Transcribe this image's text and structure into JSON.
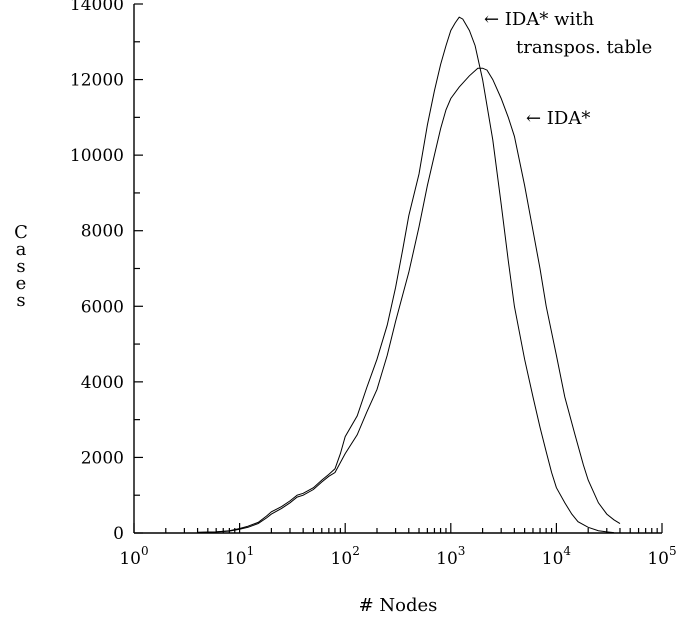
{
  "chart_data": {
    "type": "line",
    "title": "",
    "xlabel": "# Nodes",
    "ylabel": "Cases",
    "x_scale": "log10",
    "xlim": [
      1,
      100000
    ],
    "ylim": [
      0,
      14000
    ],
    "x_ticks": [
      1,
      10,
      100,
      1000,
      10000,
      100000
    ],
    "x_tick_labels": [
      {
        "base": "10",
        "exp": "0"
      },
      {
        "base": "10",
        "exp": "1"
      },
      {
        "base": "10",
        "exp": "2"
      },
      {
        "base": "10",
        "exp": "3"
      },
      {
        "base": "10",
        "exp": "4"
      },
      {
        "base": "10",
        "exp": "5"
      }
    ],
    "y_ticks": [
      0,
      2000,
      4000,
      6000,
      8000,
      10000,
      12000,
      14000
    ],
    "y_tick_labels": [
      "0",
      "2000",
      "4000",
      "6000",
      "8000",
      "10000",
      "12000",
      "14000"
    ],
    "grid": false,
    "series": [
      {
        "name": "IDA* with transpos. table",
        "label_lines": [
          "← IDA* with",
          "transpos. table"
        ],
        "x": [
          4,
          6,
          8,
          10,
          12,
          15,
          18,
          20,
          25,
          30,
          35,
          40,
          50,
          60,
          70,
          80,
          90,
          100,
          130,
          160,
          200,
          250,
          300,
          350,
          400,
          500,
          600,
          700,
          800,
          900,
          1000,
          1100,
          1200,
          1300,
          1500,
          1700,
          2000,
          2500,
          3000,
          3500,
          4000,
          5000,
          6000,
          7000,
          8000,
          9000,
          10000,
          12000,
          14000,
          16000,
          20000,
          25000,
          30000,
          35000
        ],
        "y": [
          20,
          30,
          60,
          120,
          180,
          280,
          450,
          560,
          700,
          850,
          1000,
          1050,
          1200,
          1400,
          1550,
          1700,
          2100,
          2550,
          3100,
          3850,
          4600,
          5500,
          6500,
          7500,
          8400,
          9500,
          10800,
          11700,
          12400,
          12900,
          13300,
          13500,
          13650,
          13600,
          13300,
          12900,
          12000,
          10400,
          8700,
          7200,
          6000,
          4600,
          3600,
          2800,
          2150,
          1600,
          1200,
          800,
          500,
          300,
          150,
          60,
          30,
          10
        ]
      },
      {
        "name": "IDA*",
        "label_lines": [
          "← IDA*"
        ],
        "x": [
          4,
          6,
          8,
          10,
          12,
          15,
          18,
          20,
          25,
          30,
          35,
          40,
          50,
          60,
          70,
          80,
          100,
          130,
          160,
          200,
          250,
          300,
          350,
          400,
          500,
          600,
          700,
          800,
          900,
          1000,
          1200,
          1500,
          1800,
          2000,
          2200,
          2500,
          3000,
          3500,
          4000,
          5000,
          6000,
          7000,
          8000,
          10000,
          12000,
          15000,
          18000,
          20000,
          25000,
          30000,
          35000,
          40000
        ],
        "y": [
          10,
          30,
          50,
          100,
          150,
          250,
          400,
          500,
          650,
          800,
          950,
          1000,
          1150,
          1350,
          1500,
          1600,
          2100,
          2600,
          3200,
          3800,
          4700,
          5600,
          6300,
          6900,
          8100,
          9200,
          10000,
          10700,
          11200,
          11500,
          11800,
          12100,
          12300,
          12300,
          12250,
          12000,
          11500,
          11000,
          10500,
          9200,
          8000,
          7000,
          6000,
          4700,
          3600,
          2600,
          1800,
          1400,
          800,
          500,
          350,
          250
        ]
      }
    ]
  }
}
